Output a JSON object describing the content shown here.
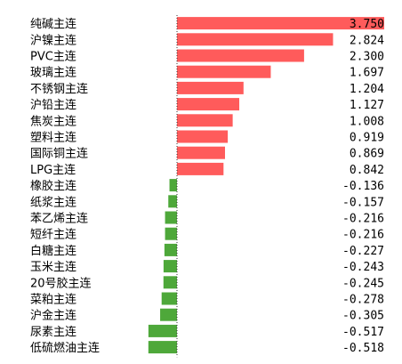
{
  "chart_data": {
    "type": "bar",
    "orientation": "horizontal",
    "title": "",
    "xlabel": "",
    "ylabel": "",
    "categories": [
      "纯碱主连",
      "沪镍主连",
      "PVC主连",
      "玻璃主连",
      "不锈钢主连",
      "沪铅主连",
      "焦炭主连",
      "塑料主连",
      "国际铜主连",
      "LPG主连",
      "橡胶主连",
      "纸浆主连",
      "苯乙烯主连",
      "短纤主连",
      "白糖主连",
      "玉米主连",
      "20号胶主连",
      "菜粕主连",
      "沪金主连",
      "尿素主连",
      "低硫燃油主连"
    ],
    "values": [
      3.75,
      2.824,
      2.3,
      1.697,
      1.204,
      1.127,
      1.008,
      0.919,
      0.869,
      0.842,
      -0.136,
      -0.157,
      -0.216,
      -0.216,
      -0.227,
      -0.243,
      -0.245,
      -0.278,
      -0.305,
      -0.517,
      -0.518
    ],
    "value_labels": [
      "3.750",
      "2.824",
      "2.300",
      "1.697",
      "1.204",
      "1.127",
      "1.008",
      "0.919",
      "0.869",
      "0.842",
      "-0.136",
      "-0.157",
      "-0.216",
      "-0.216",
      "-0.227",
      "-0.243",
      "-0.245",
      "-0.278",
      "-0.305",
      "-0.517",
      "-0.518"
    ],
    "xlim": [
      -0.6,
      3.75
    ],
    "grid": false,
    "colors": {
      "positive": "#ff5b5b",
      "negative": "#4ea83a",
      "zero_line": "#333333"
    }
  }
}
